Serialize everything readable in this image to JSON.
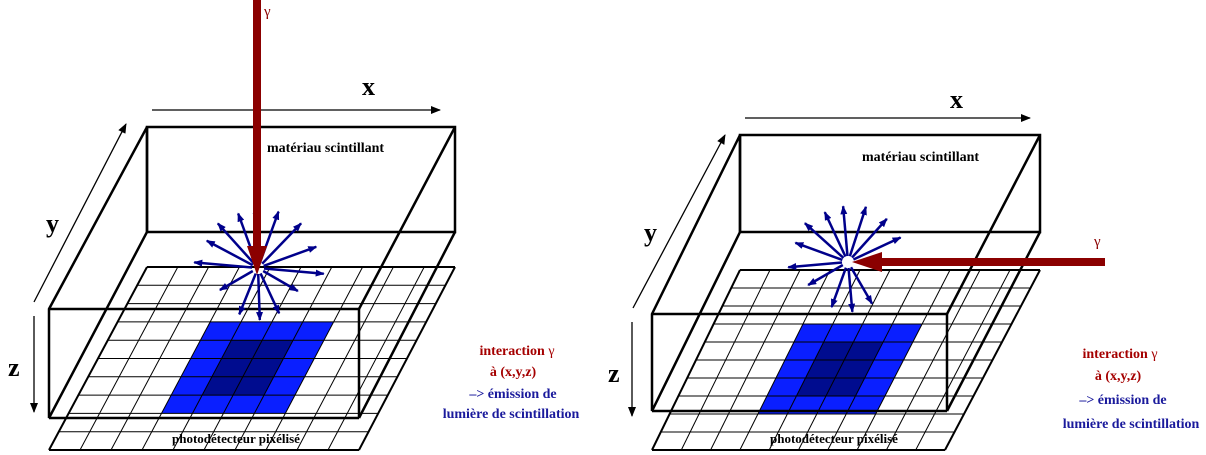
{
  "colors": {
    "outline": "#000000",
    "gamma_arrow": "#8b0000",
    "light_rays": "#00008b",
    "pixel_hit": "#0a1fff",
    "pixel_center": "#000c8f",
    "annotation_red": "#a50000",
    "annotation_blue": "#1a1a9c",
    "grid_fill": "#ffffff"
  },
  "panels": [
    {
      "axis_x": "x",
      "axis_y": "y",
      "axis_z": "z",
      "gamma_symbol": "γ",
      "crystal_label": "matériau scintillant",
      "detector_label": "photodétecteur pixélisé",
      "annotation": {
        "line1": "interaction",
        "gamma": "γ",
        "line2": "à (x,y,z)",
        "line3": "–> émission de",
        "line4": "lumière de scintillation"
      }
    },
    {
      "axis_x": "x",
      "axis_y": "y",
      "axis_z": "z",
      "gamma_symbol": "γ",
      "crystal_label": "matériau scintillant",
      "detector_label": "photodétecteur pixélisé",
      "annotation": {
        "line1": "interaction",
        "gamma": "γ",
        "line2": "à (x,y,z)",
        "line3": "–> émission de",
        "line4": "lumière de scintillation"
      }
    }
  ]
}
